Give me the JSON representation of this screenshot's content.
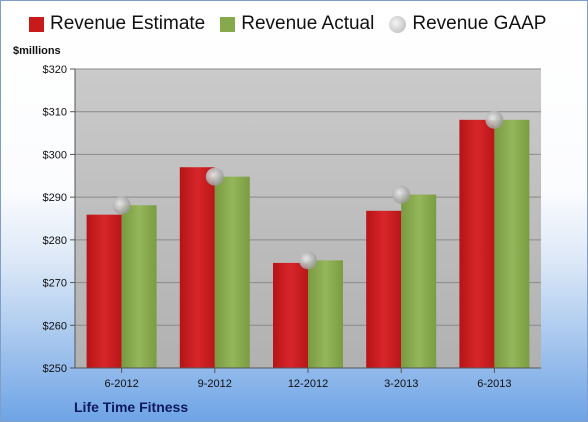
{
  "legend": {
    "estimate": "Revenue Estimate",
    "actual": "Revenue Actual",
    "gaap": "Revenue GAAP"
  },
  "units_label": "$millions",
  "company": "Life Time Fitness",
  "colors": {
    "estimate": "#c8191b",
    "actual": "#86a94c",
    "gaap": "#b0b0b0"
  },
  "chart_data": {
    "type": "bar",
    "categories": [
      "6-2012",
      "9-2012",
      "12-2012",
      "3-2013",
      "6-2013"
    ],
    "series": [
      {
        "name": "Revenue Estimate",
        "values": [
          285.9,
          297.0,
          274.6,
          286.8,
          308.1
        ]
      },
      {
        "name": "Revenue Actual",
        "values": [
          288.1,
          294.8,
          275.2,
          290.6,
          308.1
        ]
      },
      {
        "name": "Revenue GAAP",
        "values": [
          288.1,
          294.8,
          275.2,
          290.6,
          308.1
        ]
      }
    ],
    "ylim": [
      250,
      320
    ],
    "yticks": [
      "$250",
      "$260",
      "$270",
      "$280",
      "$290",
      "$300",
      "$310",
      "$320"
    ],
    "ytick_values": [
      250,
      260,
      270,
      280,
      290,
      300,
      310,
      320
    ],
    "grid": true,
    "legend_position": "top"
  }
}
